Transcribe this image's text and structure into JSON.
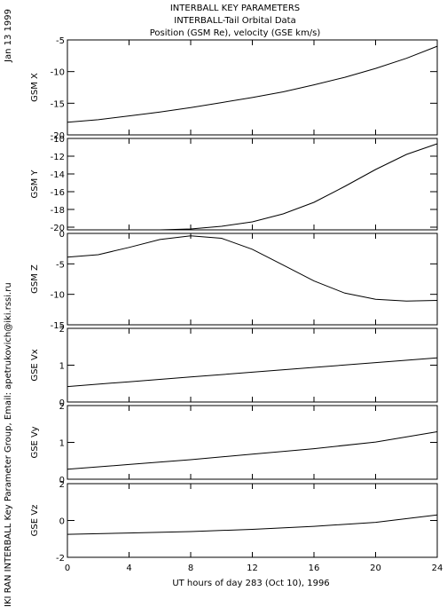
{
  "header": {
    "title": "INTERBALL KEY PARAMETERS",
    "subtitle": "INTERBALL-Tail Orbital Data",
    "units": "Position (GSM Re), velocity (GSE km/s)"
  },
  "side": {
    "date": "Jan 13 1999",
    "credit": "IKI RAN INTERBALL Key Parameter Group, Email: apetrukovich@iki.rssi.ru"
  },
  "chart_data": {
    "type": "line",
    "xlabel": "UT hours of day 283 (Oct 10), 1996",
    "xlim": [
      0,
      24
    ],
    "xticks": [
      0,
      4,
      8,
      12,
      16,
      20,
      24
    ],
    "panels": [
      {
        "ylabel": "GSM X",
        "ylim": [
          -20,
          -5
        ],
        "yticks": [
          -5,
          -10,
          -15,
          -20
        ],
        "x": [
          0,
          2,
          4,
          6,
          8,
          10,
          12,
          14,
          16,
          18,
          20,
          22,
          24
        ],
        "y": [
          -18.0,
          -17.6,
          -17.0,
          -16.4,
          -15.7,
          -14.9,
          -14.1,
          -13.2,
          -12.1,
          -10.9,
          -9.5,
          -7.9,
          -6.0
        ]
      },
      {
        "ylabel": "GSM Y",
        "ylim": [
          -20.3,
          -10
        ],
        "yticks": [
          -10,
          -12,
          -14,
          -16,
          -18,
          -20
        ],
        "x": [
          0,
          2,
          4,
          6,
          8,
          10,
          12,
          14,
          16,
          18,
          20,
          22,
          24
        ],
        "y": [
          -20.3,
          -20.3,
          -20.3,
          -20.3,
          -20.2,
          -19.9,
          -19.4,
          -18.5,
          -17.2,
          -15.4,
          -13.5,
          -11.8,
          -10.6
        ]
      },
      {
        "ylabel": "GSM Z",
        "ylim": [
          -15,
          0
        ],
        "yticks": [
          0,
          -5,
          -10,
          -15
        ],
        "x": [
          0,
          2,
          4,
          6,
          8,
          10,
          12,
          14,
          16,
          18,
          20,
          22,
          24
        ],
        "y": [
          -3.9,
          -3.5,
          -2.3,
          -1.0,
          -0.4,
          -0.8,
          -2.6,
          -5.2,
          -7.8,
          -9.8,
          -10.8,
          -11.1,
          -11.0
        ]
      },
      {
        "ylabel": "GSE Vx",
        "ylim": [
          0,
          2
        ],
        "yticks": [
          2,
          1,
          0
        ],
        "x": [
          0,
          4,
          8,
          12,
          16,
          20,
          24
        ],
        "y": [
          0.42,
          0.55,
          0.68,
          0.81,
          0.94,
          1.07,
          1.2
        ]
      },
      {
        "ylabel": "GSE Vy",
        "ylim": [
          0,
          2
        ],
        "yticks": [
          2,
          1,
          0
        ],
        "x": [
          0,
          4,
          8,
          12,
          16,
          20,
          24
        ],
        "y": [
          0.27,
          0.4,
          0.53,
          0.68,
          0.83,
          1.01,
          1.29
        ]
      },
      {
        "ylabel": "GSE Vz",
        "ylim": [
          -2,
          2
        ],
        "yticks": [
          2,
          0,
          -2
        ],
        "x": [
          0,
          4,
          8,
          12,
          16,
          20,
          24
        ],
        "y": [
          -0.75,
          -0.68,
          -0.6,
          -0.48,
          -0.32,
          -0.1,
          0.3
        ]
      }
    ]
  }
}
